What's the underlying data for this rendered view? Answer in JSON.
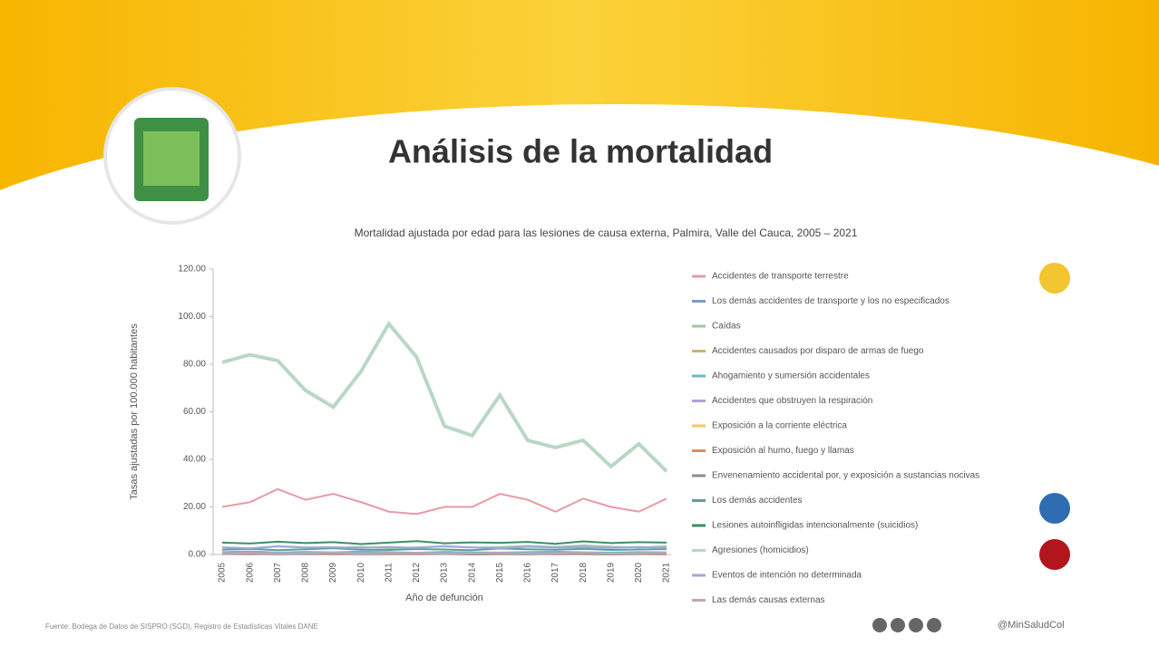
{
  "slide": {
    "title": "Análisis de la mortalidad",
    "footer": "Fuente: Bodega de Datos de SISPRO (SGD), Registro de Estadísticas Vitales DANE",
    "handle": "@MinSaludCol"
  },
  "chart_data": {
    "type": "line",
    "title": "Mortalidad ajustada por edad para las lesiones de causa externa, Palmira, Valle del Cauca, 2005 – 2021",
    "x_label": "Año de defunción",
    "y_label": "Tasas ajustadas por 100.000 habitantes",
    "categories": [
      "2005",
      "2006",
      "2007",
      "2008",
      "2009",
      "2010",
      "2011",
      "2012",
      "2013",
      "2014",
      "2015",
      "2016",
      "2017",
      "2018",
      "2019",
      "2020",
      "2021"
    ],
    "ylim": [
      0,
      120
    ],
    "yticks": [
      {
        "value": 0,
        "label": "0.00"
      },
      {
        "value": 20,
        "label": "20.00"
      },
      {
        "value": 40,
        "label": "40.00"
      },
      {
        "value": 60,
        "label": "60.00"
      },
      {
        "value": 80,
        "label": "80.00"
      },
      {
        "value": 100,
        "label": "100.00"
      },
      {
        "value": 120,
        "label": "120.00"
      }
    ],
    "grid": false,
    "series": [
      {
        "name": "Accidentes de transporte terrestre",
        "color": "#e89aa5",
        "values": [
          20,
          22,
          27.5,
          23,
          25.5,
          22,
          18,
          17,
          20,
          20,
          25.5,
          23,
          18,
          23.5,
          20,
          18,
          23.5
        ]
      },
      {
        "name": "Los demás accidentes de transporte y los no especificados",
        "color": "#7a9cc6",
        "values": [
          0.5,
          0.3,
          0.6,
          0.2,
          0.4,
          0.5,
          0.3,
          0.2,
          0.4,
          0.6,
          0.3,
          0.2,
          0.5,
          0.4,
          0.3,
          0.2,
          0.4
        ]
      },
      {
        "name": "Caídas",
        "color": "#9fc5a8",
        "values": [
          3,
          2.5,
          3.5,
          3,
          2.8,
          3.2,
          2.6,
          3,
          3.4,
          2.9,
          3.1,
          3.6,
          3.2,
          3.8,
          3.3,
          2.9,
          3.5
        ]
      },
      {
        "name": "Accidentes causados por disparo de armas de fuego",
        "color": "#c9b27c",
        "values": [
          0.3,
          0.2,
          0.4,
          0.1,
          0.3,
          0.2,
          0.1,
          0.2,
          0.3,
          0.1,
          0.2,
          0.1,
          0.2,
          0.3,
          0.1,
          0.2,
          0.1
        ]
      },
      {
        "name": "Ahogamiento y sumersión accidentales",
        "color": "#6fb7c9",
        "values": [
          1,
          1.3,
          0.8,
          1.1,
          0.9,
          1.2,
          1,
          0.7,
          1.1,
          0.9,
          0.8,
          1,
          1.2,
          0.9,
          0.8,
          1,
          0.9
        ]
      },
      {
        "name": "Accidentes que obstruyen la respiración",
        "color": "#b39ddb",
        "values": [
          0.5,
          0.4,
          0.6,
          0.3,
          0.5,
          0.4,
          0.6,
          0.3,
          0.4,
          0.5,
          0.3,
          0.4,
          0.5,
          0.6,
          0.3,
          0.4,
          0.5
        ]
      },
      {
        "name": "Exposición a la corriente eléctrica",
        "color": "#f2c86b",
        "values": [
          0.3,
          0.2,
          0.1,
          0.3,
          0.2,
          0.4,
          0.1,
          0.2,
          0.3,
          0.2,
          0.1,
          0.2,
          0.3,
          0.1,
          0.2,
          0.1,
          0.2
        ]
      },
      {
        "name": "Exposición al humo, fuego y llamas",
        "color": "#d98c5f",
        "values": [
          0.2,
          0.1,
          0.3,
          0.2,
          0.1,
          0.2,
          0.3,
          0.1,
          0.2,
          0.1,
          0.2,
          0.3,
          0.1,
          0.2,
          0.1,
          0.2,
          0.1
        ]
      },
      {
        "name": "Envenenamiento accidental por, y exposición a sustancias nocivas",
        "color": "#8d8d8d",
        "values": [
          0.2,
          0.3,
          0.1,
          0.2,
          0.3,
          0.1,
          0.2,
          0.3,
          0.2,
          0.1,
          0.2,
          0.1,
          0.3,
          0.2,
          0.1,
          0.2,
          0.3
        ]
      },
      {
        "name": "Los demás accidentes",
        "color": "#5f9ea0",
        "values": [
          2,
          2.4,
          1.8,
          2.2,
          2.6,
          2,
          1.9,
          2.3,
          2.1,
          1.8,
          2.5,
          2.2,
          2,
          2.4,
          1.9,
          2.1,
          2.3
        ]
      },
      {
        "name": "Lesiones autoinfligidas intencionalmente (suicidios)",
        "color": "#3e8e63",
        "values": [
          5,
          4.6,
          5.4,
          4.8,
          5.2,
          4.4,
          5,
          5.6,
          4.7,
          5.1,
          4.9,
          5.3,
          4.5,
          5.5,
          4.8,
          5.2,
          5
        ]
      },
      {
        "name": "Agresiones (homicidios)",
        "color": "#b9d7c5",
        "values": [
          80.8,
          84,
          81.5,
          69,
          62,
          77,
          97,
          83,
          54,
          50,
          67,
          48,
          45,
          48,
          37,
          46.5,
          35
        ]
      },
      {
        "name": "Eventos de intención no determinada",
        "color": "#a0a8d8",
        "values": [
          3,
          2.6,
          3.4,
          2.9,
          3.1,
          2.7,
          3.2,
          2.8,
          3.5,
          3,
          2.6,
          3.3,
          2.9,
          3.1,
          2.7,
          3.2,
          2.8
        ]
      },
      {
        "name": "Las demás causas externas",
        "color": "#c7a3b8",
        "values": [
          0.5,
          0.6,
          0.4,
          0.5,
          0.7,
          0.4,
          0.5,
          0.6,
          0.4,
          0.5,
          0.6,
          0.4,
          0.5,
          0.7,
          0.4,
          0.5,
          0.6
        ]
      }
    ]
  }
}
